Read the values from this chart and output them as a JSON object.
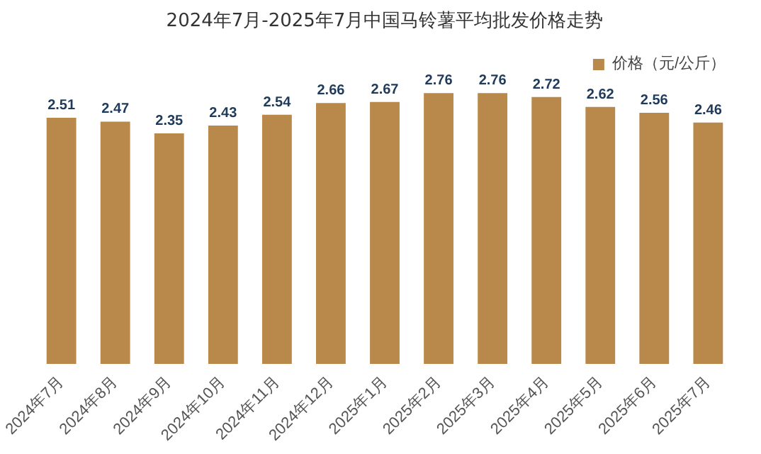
{
  "chart_data": {
    "type": "bar",
    "title": "2024年7月-2025年7月中国马铃薯平均批发价格走势",
    "categories": [
      "2024年7月",
      "2024年8月",
      "2024年9月",
      "2024年10月",
      "2024年11月",
      "2024年12月",
      "2025年1月",
      "2025年2月",
      "2025年3月",
      "2025年4月",
      "2025年5月",
      "2025年6月",
      "2025年7月"
    ],
    "series": [
      {
        "name": "价格（元/公斤）",
        "color": "#b8894a",
        "values": [
          2.51,
          2.47,
          2.35,
          2.43,
          2.54,
          2.66,
          2.67,
          2.76,
          2.76,
          2.72,
          2.62,
          2.56,
          2.46
        ]
      }
    ],
    "tick_labels": "x",
    "data_labels": true,
    "legend": "top right",
    "grid": false
  }
}
